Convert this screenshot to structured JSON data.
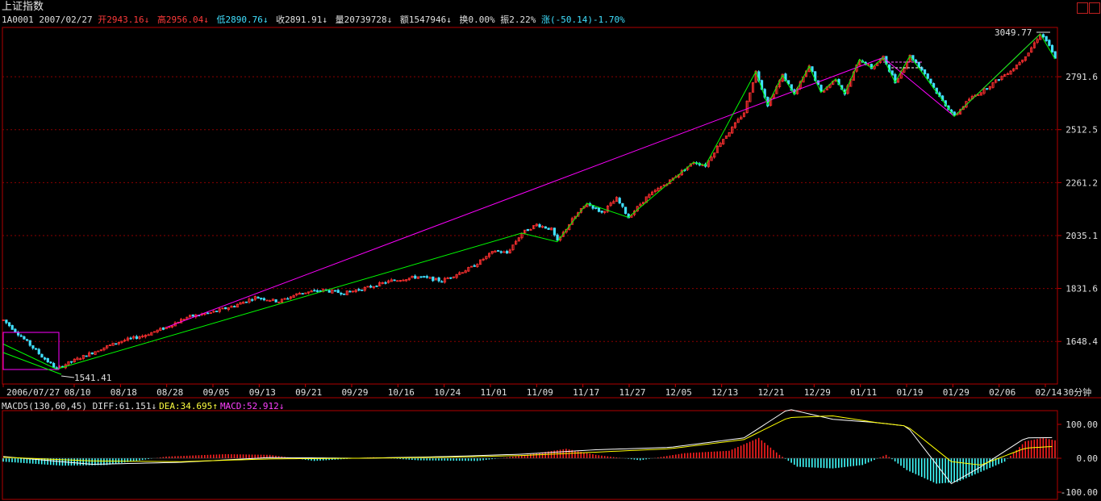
{
  "header": {
    "title": "上证指数",
    "code": "1A0001",
    "date": "2007/02/27",
    "open_label": "开",
    "open": "2943.16",
    "high_label": "高",
    "high": "2956.04",
    "low_label": "低",
    "low": "2890.76",
    "close_label": "收",
    "close": "2891.91",
    "volume_label": "量",
    "volume": "20739728",
    "amount_label": "额",
    "amount": "1547946",
    "turnover_label": "换",
    "turnover": "0.00%",
    "amplitude_label": "振",
    "amplitude": "2.22%",
    "change_label": "涨",
    "change": "(-50.14)-1.70%"
  },
  "period": "30分钟",
  "annotations": {
    "high_mark": "3049.77",
    "low_mark": "1541.41"
  },
  "macd_legend": {
    "name": "MACD5(130,60,45)",
    "diff": "DIFF:61.151",
    "dea": "DEA:34.695",
    "macd": "MACD:52.912"
  },
  "colors": {
    "background": "#000000",
    "up": "#ff3030",
    "down": "#40e0ff",
    "grid": "#8b0000",
    "zigzag": "#00ff00",
    "trendline": "#ff00ff",
    "diff_line": "#ffffff",
    "dea_line": "#ffff00"
  },
  "chart_data": [
    {
      "type": "candlestick",
      "ylim": [
        1541.41,
        3049.77
      ],
      "y_tick_labels": [
        "2791.6",
        "2512.5",
        "2261.2",
        "2035.1",
        "1831.6",
        "1648.4"
      ],
      "y_ticks": [
        2791.6,
        2512.5,
        2261.2,
        2035.1,
        1831.6,
        1648.4
      ],
      "x_tick_labels": [
        "2006/07/27",
        "08/10",
        "08/18",
        "08/28",
        "09/05",
        "09/13",
        "09/21",
        "09/29",
        "10/16",
        "10/24",
        "11/01",
        "11/09",
        "11/17",
        "11/27",
        "12/05",
        "12/13",
        "12/21",
        "12/29",
        "01/11",
        "01/19",
        "01/29",
        "02/06",
        "02/14"
      ],
      "price_path": [
        [
          0,
          1720
        ],
        [
          6,
          1665
        ],
        [
          13,
          1600
        ],
        [
          18,
          1560
        ],
        [
          21,
          1575
        ],
        [
          27,
          1600
        ],
        [
          33,
          1625
        ],
        [
          40,
          1650
        ],
        [
          47,
          1667
        ],
        [
          55,
          1695
        ],
        [
          62,
          1730
        ],
        [
          70,
          1745
        ],
        [
          78,
          1770
        ],
        [
          85,
          1800
        ],
        [
          93,
          1785
        ],
        [
          100,
          1815
        ],
        [
          108,
          1825
        ],
        [
          115,
          1815
        ],
        [
          123,
          1835
        ],
        [
          131,
          1860
        ],
        [
          140,
          1875
        ],
        [
          148,
          1860
        ],
        [
          158,
          1910
        ],
        [
          166,
          1975
        ],
        [
          170,
          1965
        ],
        [
          175,
          2045
        ],
        [
          180,
          2080
        ],
        [
          185,
          2060
        ],
        [
          187,
          2010
        ],
        [
          192,
          2100
        ],
        [
          197,
          2170
        ],
        [
          202,
          2130
        ],
        [
          207,
          2190
        ],
        [
          211,
          2110
        ],
        [
          217,
          2195
        ],
        [
          225,
          2270
        ],
        [
          233,
          2355
        ],
        [
          237,
          2340
        ],
        [
          242,
          2450
        ],
        [
          246,
          2520
        ],
        [
          250,
          2600
        ],
        [
          254,
          2820
        ],
        [
          258,
          2640
        ],
        [
          263,
          2800
        ],
        [
          267,
          2695
        ],
        [
          272,
          2850
        ],
        [
          276,
          2705
        ],
        [
          281,
          2780
        ],
        [
          284,
          2700
        ],
        [
          289,
          2890
        ],
        [
          293,
          2840
        ],
        [
          297,
          2900
        ],
        [
          301,
          2760
        ],
        [
          306,
          2910
        ],
        [
          311,
          2810
        ],
        [
          316,
          2680
        ],
        [
          321,
          2580
        ],
        [
          326,
          2670
        ],
        [
          331,
          2720
        ],
        [
          336,
          2780
        ],
        [
          341,
          2840
        ],
        [
          346,
          2930
        ],
        [
          350,
          3040
        ],
        [
          352,
          3000
        ],
        [
          355,
          2892
        ]
      ],
      "zigzag": [
        [
          0,
          1640
        ],
        [
          18,
          1560
        ],
        [
          175,
          2045
        ],
        [
          187,
          2010
        ],
        [
          197,
          2170
        ],
        [
          211,
          2110
        ],
        [
          233,
          2355
        ],
        [
          237,
          2340
        ],
        [
          254,
          2820
        ],
        [
          258,
          2640
        ],
        [
          263,
          2800
        ],
        [
          267,
          2695
        ],
        [
          272,
          2850
        ],
        [
          276,
          2705
        ],
        [
          281,
          2780
        ],
        [
          284,
          2700
        ],
        [
          289,
          2890
        ],
        [
          293,
          2840
        ],
        [
          297,
          2900
        ],
        [
          301,
          2760
        ],
        [
          306,
          2910
        ],
        [
          321,
          2580
        ],
        [
          350,
          3040
        ],
        [
          355,
          2892
        ]
      ],
      "trendlines": [
        [
          [
            55,
            1695
          ],
          [
            297,
            2900
          ]
        ],
        [
          [
            297,
            2900
          ],
          [
            321,
            2580
          ]
        ],
        [
          [
            321,
            2580
          ],
          [
            350,
            3040
          ]
        ]
      ]
    },
    {
      "type": "bar",
      "series": [
        {
          "name": "DIFF",
          "values": [
            61.151
          ]
        },
        {
          "name": "DEA",
          "values": [
            34.695
          ]
        },
        {
          "name": "MACD",
          "values": [
            52.912
          ]
        }
      ],
      "ylim": [
        -100,
        100
      ],
      "y_tick_labels": [
        "100.00",
        "0.00",
        "-100.00"
      ],
      "y_ticks": [
        100,
        0,
        -100
      ],
      "diff_path": [
        [
          0,
          5
        ],
        [
          30,
          -18
        ],
        [
          60,
          -12
        ],
        [
          90,
          2
        ],
        [
          120,
          0
        ],
        [
          150,
          5
        ],
        [
          175,
          12
        ],
        [
          200,
          25
        ],
        [
          225,
          32
        ],
        [
          250,
          60
        ],
        [
          265,
          145
        ],
        [
          280,
          115
        ],
        [
          295,
          105
        ],
        [
          305,
          95
        ],
        [
          320,
          -75
        ],
        [
          330,
          -25
        ],
        [
          345,
          60
        ],
        [
          355,
          61
        ]
      ],
      "dea_path": [
        [
          0,
          3
        ],
        [
          30,
          -8
        ],
        [
          60,
          -10
        ],
        [
          90,
          -2
        ],
        [
          120,
          0
        ],
        [
          150,
          3
        ],
        [
          175,
          8
        ],
        [
          200,
          18
        ],
        [
          225,
          28
        ],
        [
          250,
          55
        ],
        [
          265,
          120
        ],
        [
          280,
          125
        ],
        [
          295,
          105
        ],
        [
          305,
          95
        ],
        [
          320,
          -10
        ],
        [
          330,
          -20
        ],
        [
          345,
          30
        ],
        [
          355,
          35
        ]
      ],
      "macd_hist": [
        [
          0,
          -10
        ],
        [
          20,
          -22
        ],
        [
          35,
          -20
        ],
        [
          55,
          5
        ],
        [
          75,
          12
        ],
        [
          90,
          10
        ],
        [
          105,
          -8
        ],
        [
          125,
          3
        ],
        [
          140,
          -6
        ],
        [
          160,
          -8
        ],
        [
          175,
          8
        ],
        [
          190,
          28
        ],
        [
          200,
          10
        ],
        [
          215,
          -6
        ],
        [
          230,
          15
        ],
        [
          245,
          22
        ],
        [
          255,
          60
        ],
        [
          262,
          10
        ],
        [
          268,
          -25
        ],
        [
          280,
          -30
        ],
        [
          290,
          -20
        ],
        [
          298,
          10
        ],
        [
          305,
          -35
        ],
        [
          315,
          -75
        ],
        [
          322,
          -70
        ],
        [
          330,
          -40
        ],
        [
          338,
          -10
        ],
        [
          345,
          50
        ],
        [
          351,
          60
        ],
        [
          355,
          53
        ]
      ]
    }
  ]
}
